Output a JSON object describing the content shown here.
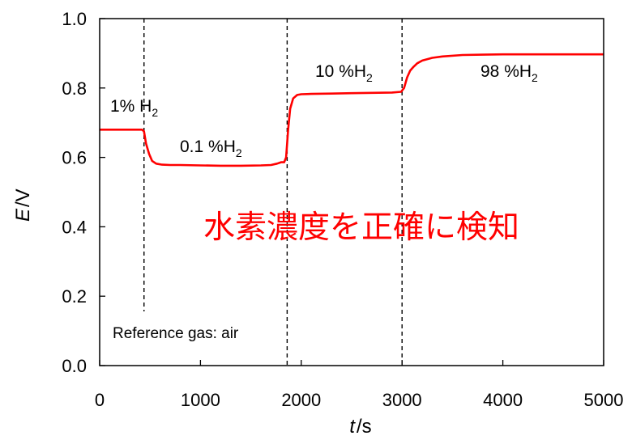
{
  "chart_data": {
    "type": "line",
    "xlabel": "t",
    "xunit": "/s",
    "ylabel": "E",
    "yunit": "/V",
    "xlim": [
      0,
      5000
    ],
    "ylim": [
      0.0,
      1.0
    ],
    "x_ticks": [
      "0",
      "1000",
      "2000",
      "3000",
      "4000",
      "5000"
    ],
    "y_ticks": [
      "0.0",
      "0.2",
      "0.4",
      "0.6",
      "0.8",
      "1.0"
    ],
    "grid": false,
    "line_color": "#ff0000",
    "divider_color": "#000000",
    "dividers_x": [
      440,
      1860,
      3000
    ],
    "annotations": [
      {
        "id": "h1",
        "main": "1% H",
        "sub": "2"
      },
      {
        "id": "h01",
        "main": "0.1 %H",
        "sub": "2"
      },
      {
        "id": "h10",
        "main": "10 %H",
        "sub": "2"
      },
      {
        "id": "h98",
        "main": "98 %H",
        "sub": "2"
      }
    ],
    "note": "Reference gas: air",
    "headline": "水素濃度を正確に検知",
    "headline_color": "#ff0000",
    "series": [
      {
        "x": [
          0,
          420,
          440,
          460,
          490,
          520,
          560,
          620,
          700,
          800,
          1000,
          1200,
          1400,
          1600,
          1700,
          1760,
          1800,
          1830,
          1850,
          1870,
          1890,
          1920,
          1960,
          2000,
          2100,
          2300,
          2500,
          2700,
          2900,
          2990,
          3020,
          3050,
          3080,
          3110,
          3150,
          3200,
          3300,
          3400,
          3600,
          3800,
          4000,
          4500,
          5000
        ],
        "y": [
          0.68,
          0.68,
          0.675,
          0.64,
          0.61,
          0.59,
          0.582,
          0.579,
          0.578,
          0.578,
          0.577,
          0.576,
          0.576,
          0.577,
          0.578,
          0.582,
          0.586,
          0.586,
          0.6,
          0.68,
          0.74,
          0.77,
          0.78,
          0.782,
          0.783,
          0.784,
          0.785,
          0.786,
          0.787,
          0.789,
          0.8,
          0.83,
          0.85,
          0.86,
          0.871,
          0.879,
          0.887,
          0.891,
          0.895,
          0.896,
          0.897,
          0.897,
          0.897
        ]
      }
    ]
  }
}
